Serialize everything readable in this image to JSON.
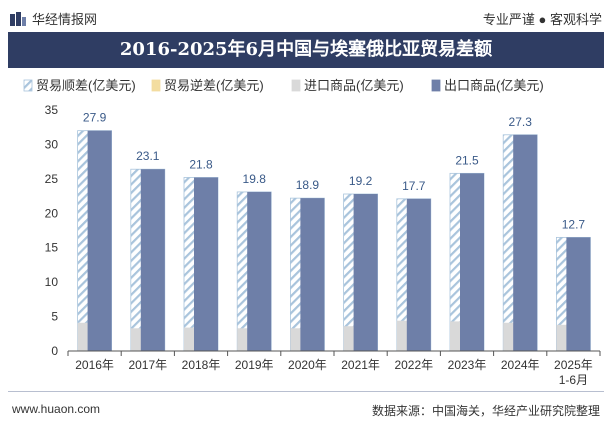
{
  "header": {
    "logo_text": "华经情报网",
    "slogan": "专业严谨 ● 客观科学",
    "title": "2016-2025年6月中国与埃塞俄比亚贸易差额"
  },
  "footer": {
    "website": "www.huaon.com",
    "source": "数据来源：中国海关，华经产业研究院整理"
  },
  "colors": {
    "title_band": "#2f3d63",
    "export": "#6e7fa8",
    "import": "#d9d9d9",
    "surplus_stripe": "#a9c4dc",
    "deficit": "#f3dda0",
    "label": "#3a5a88"
  },
  "chart_data": {
    "type": "bar",
    "categories": [
      "2016年",
      "2017年",
      "2018年",
      "2019年",
      "2020年",
      "2021年",
      "2022年",
      "2023年",
      "2024年",
      "2025年\n1-6月"
    ],
    "series": [
      {
        "name": "贸易顺差(亿美元)",
        "values": [
          27.9,
          23.1,
          21.8,
          19.8,
          18.9,
          19.2,
          17.7,
          21.5,
          27.3,
          12.7
        ]
      },
      {
        "name": "贸易逆差(亿美元)",
        "values": [
          0,
          0,
          0,
          0,
          0,
          0,
          0,
          0,
          0,
          0
        ]
      },
      {
        "name": "进口商品(亿美元)",
        "values": [
          4.1,
          3.3,
          3.4,
          3.3,
          3.3,
          3.6,
          4.4,
          4.3,
          4.1,
          3.8
        ]
      },
      {
        "name": "出口商品(亿美元)",
        "values": [
          32.0,
          26.4,
          25.2,
          23.1,
          22.2,
          22.8,
          22.1,
          25.8,
          31.4,
          16.5
        ]
      }
    ],
    "data_labels": [
      "27.9",
      "23.1",
      "21.8",
      "19.8",
      "18.9",
      "19.2",
      "17.7",
      "21.5",
      "27.3",
      "12.7"
    ],
    "y_ticks": [
      "0",
      "5",
      "10",
      "15",
      "20",
      "25",
      "30",
      "35"
    ],
    "ylim": [
      0,
      35
    ],
    "legend_position": "top",
    "grid": false
  }
}
